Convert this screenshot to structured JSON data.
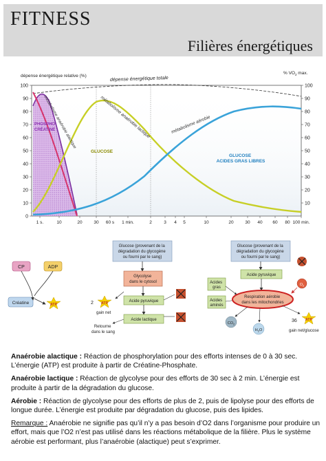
{
  "header": {
    "title": "FITNESS",
    "subtitle": "Filières énergétiques"
  },
  "chart": {
    "y_label_left": "dépense énergétique relative (%)",
    "y_label_right": "% VO",
    "y_label_right_sub": "2",
    "y_label_right_suffix": " max.",
    "y_ticks_left": [
      "100",
      "90",
      "80",
      "70",
      "60",
      "50",
      "40",
      "30",
      "20",
      "10",
      "0"
    ],
    "y_ticks_right": [
      "100",
      "90",
      "80",
      "70",
      "60",
      "50",
      "40",
      "30",
      "20",
      "10"
    ],
    "x_ticks": [
      "1 s.",
      "10",
      "20",
      "30",
      "60 s",
      "1 min.",
      "2",
      "3",
      "4",
      "5",
      "10",
      "20",
      "30",
      "40",
      "60",
      "80",
      "100 min."
    ],
    "curve_labels": {
      "total": "dépense énergétique totale",
      "alactic": "métabolisme anaérobie alactique",
      "lactic": "métabolisme anaérobie lactique",
      "aerobic": "métabolisme aérobie",
      "phospho_1": "PHOSPHO-",
      "phospho_2": "CRÉATINE",
      "glucose": "GLUCOSE",
      "glucose_2": "GLUCOSE",
      "fatty_acids": "ACIDES GRAS LIBRES"
    }
  },
  "diagrams": {
    "alactic": {
      "cp": "CP",
      "adp": "ADP",
      "creatine": "Créatine",
      "atp": "ATP"
    },
    "lactic": {
      "source_1": "Glucose (provenant de la",
      "source_2": "dégradation du glycogène",
      "source_3": "ou fourni par le sang)",
      "glycolysis_1": "Glycolyse",
      "glycolysis_2": "dans le cytosol",
      "pyruvic": "Acide pyruvique",
      "lactic_acid": "Acide lactique",
      "atp": "ATP",
      "atp_count": "2",
      "gain": "gain net",
      "return_1": "Retourne",
      "return_2": "dans le sang"
    },
    "aerobic": {
      "source_1": "Glucose (provenant de la",
      "source_2": "dégradation du glycogène",
      "source_3": "ou fourni par le sang)",
      "pyruvic": "Acide pyruvique",
      "fatty_1": "Acides",
      "fatty_2": "gras",
      "amino_1": "Acides",
      "amino_2": "aminés",
      "resp_1": "Respiration aérobie",
      "resp_2": "dans les mitochondries",
      "o2": "O",
      "o2_sub": "2",
      "co2": "CO",
      "co2_sub": "2",
      "h2o_1": "H",
      "h2o_sub": "2",
      "h2o_2": "O",
      "atp": "ATP",
      "atp_count": "36",
      "gain": "gain net/glucose"
    }
  },
  "notes": {
    "alactic_label": "Anaérobie alactique :",
    "alactic_text": " Réaction de phosphorylation pour des efforts intenses de 0 à 30 sec. L’énergie (ATP) est produite à partir de Créatine-Phosphate.",
    "lactic_label": "Anaérobie lactique :",
    "lactic_text": " Réaction de glycolyse pour des efforts de 30 sec à 2 min. L’énergie est produite à partir de la dégradation du glucose.",
    "aerobic_label": "Aérobie :",
    "aerobic_text": " Réaction de glycolyse pour des efforts de plus de 2, puis de lipolyse pour des efforts de longue durée. L’énergie est produite par dégradation du glucose, puis des lipides.",
    "remark_label": "Remarque :",
    "remark_text": " Anaérobie ne signifie pas qu’il n’y a pas besoin d’O2 dans l’organisme pour produire un effort, mais que l’O2 n’est pas utilisé dans les réactions métabolique de la filière. Plus le système aérobie est performant, plus l’anaérobie (alactique) peut s’exprimer."
  }
}
